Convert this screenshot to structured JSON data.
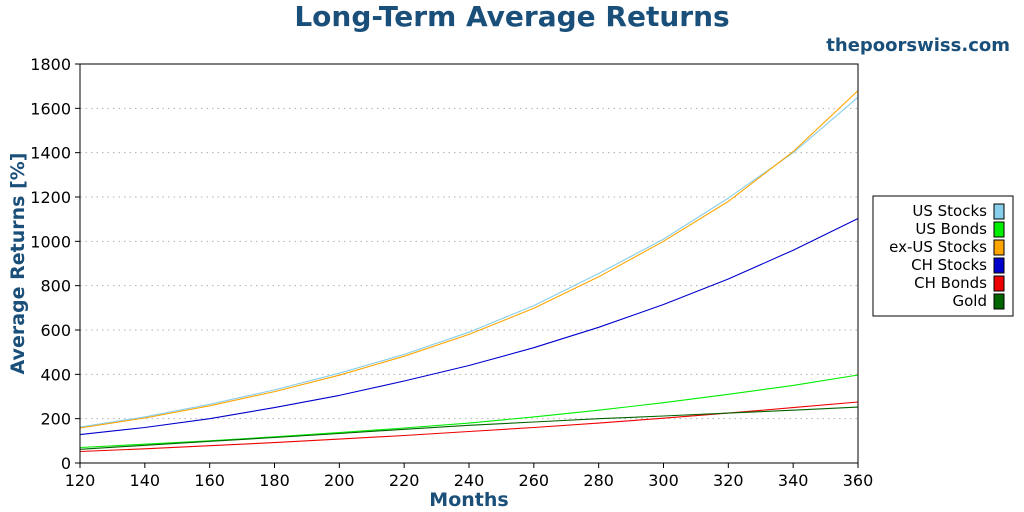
{
  "header": {
    "title": "Long-Term Average Returns",
    "watermark": "thepoorswiss.com"
  },
  "chart_data": {
    "type": "line",
    "title": "Long-Term Average Returns",
    "xlabel": "Months",
    "ylabel": "Average Returns [%]",
    "xlim": [
      120,
      360
    ],
    "ylim": [
      0,
      1800
    ],
    "x_ticks": [
      120,
      140,
      160,
      180,
      200,
      220,
      240,
      260,
      280,
      300,
      320,
      340,
      360
    ],
    "y_ticks": [
      0,
      200,
      400,
      600,
      800,
      1000,
      1200,
      1400,
      1600,
      1800
    ],
    "grid": "horizontal dotted",
    "legend_position": "right",
    "x": [
      120,
      140,
      160,
      180,
      200,
      220,
      240,
      260,
      280,
      300,
      320,
      340,
      360
    ],
    "series": [
      {
        "name": "US Stocks",
        "color": "#87ceeb",
        "values": [
          162,
          208,
          265,
          330,
          405,
          490,
          590,
          710,
          855,
          1010,
          1195,
          1400,
          1650
        ]
      },
      {
        "name": "US Bonds",
        "color": "#00ee00",
        "values": [
          70,
          85,
          100,
          118,
          137,
          158,
          180,
          208,
          238,
          272,
          310,
          350,
          397
        ]
      },
      {
        "name": "ex-US Stocks",
        "color": "#ffa500",
        "values": [
          158,
          203,
          258,
          322,
          396,
          482,
          580,
          698,
          840,
          1000,
          1180,
          1405,
          1680
        ]
      },
      {
        "name": "CH Stocks",
        "color": "#0000cd",
        "values": [
          128,
          160,
          200,
          250,
          305,
          370,
          440,
          520,
          612,
          715,
          830,
          960,
          1103
        ]
      },
      {
        "name": "CH Bonds",
        "color": "#ee0000",
        "values": [
          52,
          64,
          78,
          92,
          108,
          124,
          142,
          160,
          180,
          202,
          225,
          250,
          275
        ]
      },
      {
        "name": "Gold",
        "color": "#006400",
        "values": [
          62,
          80,
          98,
          115,
          133,
          152,
          170,
          185,
          200,
          212,
          225,
          238,
          252
        ]
      }
    ]
  }
}
